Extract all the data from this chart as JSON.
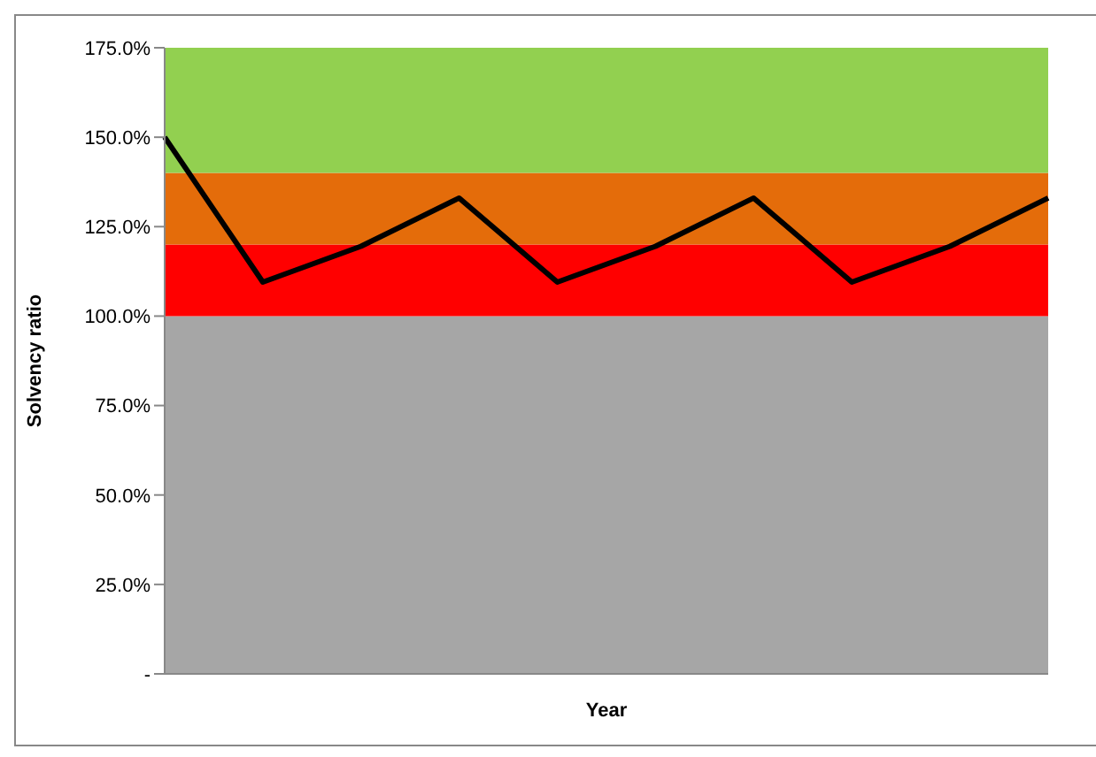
{
  "chart_data": {
    "type": "line",
    "xlabel": "Year",
    "ylabel": "Solvency ratio",
    "categories": [
      null,
      null,
      null,
      null,
      null,
      null,
      null,
      null,
      null,
      null
    ],
    "series": [
      {
        "color": "#000000",
        "values": [
          150,
          109.5,
          119.5,
          133,
          109.5,
          119.5,
          133,
          109.5,
          119.5,
          133
        ]
      }
    ],
    "ylim": [
      0,
      175
    ],
    "yticks": [
      {
        "value": 0,
        "label": "-"
      },
      {
        "value": 25,
        "label": "25.0%"
      },
      {
        "value": 50,
        "label": "50.0%"
      },
      {
        "value": 75,
        "label": "75.0%"
      },
      {
        "value": 100,
        "label": "100.0%"
      },
      {
        "value": 125,
        "label": "125.0%"
      },
      {
        "value": 150,
        "label": "150.0%"
      },
      {
        "value": 175,
        "label": "175.0%"
      }
    ],
    "bands": [
      {
        "axis": "y",
        "from": 0,
        "to": 100,
        "color": "#a6a6a6"
      },
      {
        "axis": "y",
        "from": 100,
        "to": 120,
        "color": "#ff0000"
      },
      {
        "axis": "y",
        "from": 120,
        "to": 140,
        "color": "#e46c0a"
      },
      {
        "axis": "y",
        "from": 140,
        "to": 175,
        "color": "#92d050"
      }
    ],
    "tick_labels": "y",
    "grid": false,
    "legend": false,
    "marker": "none",
    "line_style": "solid"
  }
}
